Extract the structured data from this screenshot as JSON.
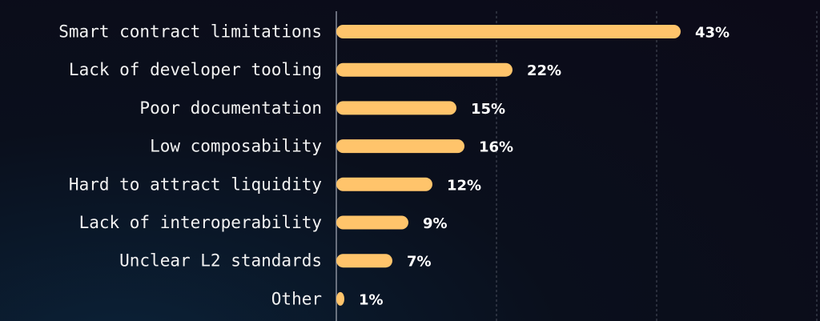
{
  "chart_data": {
    "type": "bar",
    "orientation": "horizontal",
    "categories": [
      "Smart contract limitations",
      "Lack of developer tooling",
      "Poor documentation",
      "Low composability",
      "Hard to attract liquidity",
      "Lack of interoperability",
      "Unclear L2 standards",
      "Other"
    ],
    "values": [
      43,
      22,
      15,
      16,
      12,
      9,
      7,
      1
    ],
    "value_labels": [
      "43%",
      "22%",
      "15%",
      "16%",
      "12%",
      "9%",
      "7%",
      "1%"
    ],
    "xlim": [
      0,
      60
    ],
    "grid": "vertical dashed",
    "bar_color": "#ffc46b",
    "axis_color": "#8a8f9c",
    "grid_color": "#4a4f5c"
  }
}
